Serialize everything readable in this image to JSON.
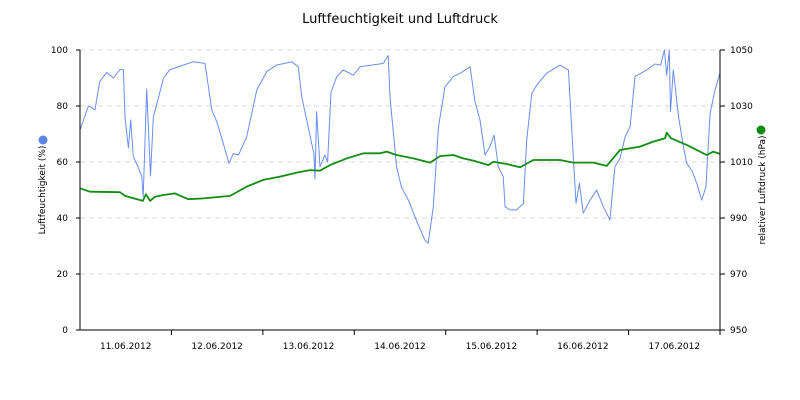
{
  "chart_data": {
    "type": "line",
    "title": "Luftfeuchtigkeit und Luftdruck",
    "xlabel": "",
    "x_range": [
      "2012-06-11 00:00",
      "2012-06-18 00:00"
    ],
    "x_tick_labels": [
      "11.06.2012",
      "12.06.2012",
      "13.06.2012",
      "14.06.2012",
      "15.06.2012",
      "16.06.2012",
      "17.06.2012"
    ],
    "grid": "horizontal dashed",
    "y_left": {
      "label": "Luftfeuchtigkeit (%)",
      "range": [
        0,
        100
      ],
      "ticks": [
        "0",
        "20",
        "40",
        "60",
        "80",
        "100"
      ],
      "legend_color": "#5b85ea"
    },
    "y_right": {
      "label": "relativer Luftdruck (hPa)",
      "range": [
        950,
        1050
      ],
      "ticks": [
        "950",
        "970",
        "990",
        "1010",
        "1030",
        "1050"
      ],
      "legend_color": "#128c12"
    },
    "series": [
      {
        "axis": "left",
        "color": "#6a8ef0",
        "points": [
          [
            "2012-06-11 00:00",
            71.4
          ],
          [
            "2012-06-11 02:12",
            80
          ],
          [
            "2012-06-11 03:30",
            79
          ],
          [
            "2012-06-11 03:54",
            78.6
          ],
          [
            "2012-06-11 05:12",
            88.7
          ],
          [
            "2012-06-11 07:00",
            92
          ],
          [
            "2012-06-11 08:45",
            90
          ],
          [
            "2012-06-11 10:30",
            93
          ],
          [
            "2012-06-11 11:24",
            93
          ],
          [
            "2012-06-11 11:48",
            76
          ],
          [
            "2012-06-11 12:42",
            65
          ],
          [
            "2012-06-11 13:18",
            75
          ],
          [
            "2012-06-11 14:00",
            62
          ],
          [
            "2012-06-11 15:18",
            58
          ],
          [
            "2012-06-11 16:12",
            55
          ],
          [
            "2012-06-11 16:36",
            47.6
          ],
          [
            "2012-06-11 17:30",
            86
          ],
          [
            "2012-06-11 18:30",
            55
          ],
          [
            "2012-06-11 19:15",
            76
          ],
          [
            "2012-06-11 20:36",
            83
          ],
          [
            "2012-06-11 21:54",
            90
          ],
          [
            "2012-06-11 23:36",
            93
          ],
          [
            "2012-06-12 03:06",
            94.6
          ],
          [
            "2012-06-12 05:45",
            95.8
          ],
          [
            "2012-06-12 08:48",
            95.2
          ],
          [
            "2012-06-12 10:36",
            78.6
          ],
          [
            "2012-06-12 11:54",
            74.4
          ],
          [
            "2012-06-12 13:36",
            66.7
          ],
          [
            "2012-06-12 15:06",
            59.5
          ],
          [
            "2012-06-12 16:15",
            63
          ],
          [
            "2012-06-12 17:36",
            62.5
          ],
          [
            "2012-06-12 19:45",
            69
          ],
          [
            "2012-06-12 22:24",
            85.7
          ],
          [
            "2012-06-13 01:00",
            92.3
          ],
          [
            "2012-06-13 03:36",
            94.6
          ],
          [
            "2012-06-13 07:36",
            95.8
          ],
          [
            "2012-06-13 09:18",
            94
          ],
          [
            "2012-06-13 10:12",
            83.3
          ],
          [
            "2012-06-13 11:30",
            75
          ],
          [
            "2012-06-13 12:48",
            66.7
          ],
          [
            "2012-06-13 13:24",
            63
          ],
          [
            "2012-06-13 13:42",
            54
          ],
          [
            "2012-06-13 14:06",
            78
          ],
          [
            "2012-06-13 15:00",
            58.3
          ],
          [
            "2012-06-13 16:18",
            62.5
          ],
          [
            "2012-06-13 17:00",
            60
          ],
          [
            "2012-06-13 17:54",
            85
          ],
          [
            "2012-06-13 19:24",
            90.5
          ],
          [
            "2012-06-13 21:06",
            92.9
          ],
          [
            "2012-06-13 23:45",
            91
          ],
          [
            "2012-06-14 01:30",
            94
          ],
          [
            "2012-06-14 07:36",
            95.2
          ],
          [
            "2012-06-14 08:54",
            98
          ],
          [
            "2012-06-14 09:24",
            82.7
          ],
          [
            "2012-06-14 11:06",
            58.3
          ],
          [
            "2012-06-14 12:24",
            51
          ],
          [
            "2012-06-14 14:12",
            46.4
          ],
          [
            "2012-06-14 16:24",
            38.7
          ],
          [
            "2012-06-14 18:36",
            32
          ],
          [
            "2012-06-14 19:24",
            31
          ],
          [
            "2012-06-14 20:45",
            44
          ],
          [
            "2012-06-14 22:06",
            72.6
          ],
          [
            "2012-06-14 23:48",
            86.9
          ],
          [
            "2012-06-15 02:00",
            90.5
          ],
          [
            "2012-06-15 04:12",
            92
          ],
          [
            "2012-06-15 06:24",
            94
          ],
          [
            "2012-06-15 07:42",
            81.5
          ],
          [
            "2012-06-15 09:00",
            75
          ],
          [
            "2012-06-15 10:18",
            62.5
          ],
          [
            "2012-06-15 11:36",
            65.5
          ],
          [
            "2012-06-15 12:42",
            69.6
          ],
          [
            "2012-06-15 13:48",
            58.3
          ],
          [
            "2012-06-15 15:06",
            54.8
          ],
          [
            "2012-06-15 15:36",
            44
          ],
          [
            "2012-06-15 16:54",
            42.9
          ],
          [
            "2012-06-15 18:36",
            42.9
          ],
          [
            "2012-06-15 20:24",
            45.2
          ],
          [
            "2012-06-15 21:15",
            67.9
          ],
          [
            "2012-06-15 22:36",
            84.5
          ],
          [
            "2012-06-15 23:54",
            87.5
          ],
          [
            "2012-06-16 02:30",
            91.7
          ],
          [
            "2012-06-16 06:00",
            94.6
          ],
          [
            "2012-06-16 08:12",
            92.9
          ],
          [
            "2012-06-16 09:30",
            61.9
          ],
          [
            "2012-06-16 10:12",
            45.2
          ],
          [
            "2012-06-16 11:06",
            52.4
          ],
          [
            "2012-06-16 12:06",
            41.7
          ],
          [
            "2012-06-16 13:54",
            46.4
          ],
          [
            "2012-06-16 15:36",
            50
          ],
          [
            "2012-06-16 17:24",
            44
          ],
          [
            "2012-06-16 19:06",
            39.3
          ],
          [
            "2012-06-16 20:24",
            58.3
          ],
          [
            "2012-06-16 21:45",
            61.3
          ],
          [
            "2012-06-16 23:06",
            69
          ],
          [
            "2012-06-17 00:24",
            72.6
          ],
          [
            "2012-06-17 01:42",
            90.5
          ],
          [
            "2012-06-17 04:45",
            92.9
          ],
          [
            "2012-06-17 06:54",
            95
          ],
          [
            "2012-06-17 08:24",
            94.6
          ],
          [
            "2012-06-17 09:24",
            100
          ],
          [
            "2012-06-17 10:00",
            91
          ],
          [
            "2012-06-17 10:42",
            100
          ],
          [
            "2012-06-17 11:00",
            78
          ],
          [
            "2012-06-17 11:45",
            92.9
          ],
          [
            "2012-06-17 13:06",
            76.2
          ],
          [
            "2012-06-17 14:24",
            65.5
          ],
          [
            "2012-06-17 15:15",
            59.5
          ],
          [
            "2012-06-17 16:36",
            57
          ],
          [
            "2012-06-17 17:54",
            52.4
          ],
          [
            "2012-06-17 19:12",
            46.4
          ],
          [
            "2012-06-17 20:18",
            51
          ],
          [
            "2012-06-17 21:24",
            77.4
          ],
          [
            "2012-06-17 22:42",
            85.7
          ],
          [
            "2012-06-18 00:00",
            91.7
          ]
        ]
      },
      {
        "axis": "right",
        "color": "#128c12",
        "points": [
          [
            "2012-06-11 00:00",
            1000.6
          ],
          [
            "2012-06-11 02:36",
            999.4
          ],
          [
            "2012-06-11 10:30",
            999.2
          ],
          [
            "2012-06-11 11:48",
            997.9
          ],
          [
            "2012-06-11 16:30",
            996.1
          ],
          [
            "2012-06-11 17:18",
            998.5
          ],
          [
            "2012-06-11 18:24",
            996.1
          ],
          [
            "2012-06-11 19:42",
            997.6
          ],
          [
            "2012-06-11 21:54",
            998.2
          ],
          [
            "2012-06-12 00:54",
            998.8
          ],
          [
            "2012-06-12 04:24",
            996.7
          ],
          [
            "2012-06-12 08:24",
            997
          ],
          [
            "2012-06-12 15:24",
            997.9
          ],
          [
            "2012-06-12 19:45",
            1001.2
          ],
          [
            "2012-06-13 00:06",
            1003.6
          ],
          [
            "2012-06-13 04:30",
            1004.8
          ],
          [
            "2012-06-13 08:54",
            1006.2
          ],
          [
            "2012-06-13 12:24",
            1007.1
          ],
          [
            "2012-06-13 15:00",
            1006.9
          ],
          [
            "2012-06-13 17:36",
            1008.9
          ],
          [
            "2012-06-13 22:00",
            1011.3
          ],
          [
            "2012-06-14 02:24",
            1013.1
          ],
          [
            "2012-06-14 06:45",
            1013.1
          ],
          [
            "2012-06-14 08:30",
            1013.7
          ],
          [
            "2012-06-14 11:06",
            1012.5
          ],
          [
            "2012-06-14 15:30",
            1011.3
          ],
          [
            "2012-06-14 19:54",
            1009.8
          ],
          [
            "2012-06-14 22:30",
            1012.1
          ],
          [
            "2012-06-15 02:00",
            1012.5
          ],
          [
            "2012-06-15 04:36",
            1011.3
          ],
          [
            "2012-06-15 07:15",
            1010.5
          ],
          [
            "2012-06-15 11:12",
            1008.9
          ],
          [
            "2012-06-15 12:30",
            1010.1
          ],
          [
            "2012-06-15 16:00",
            1009.3
          ],
          [
            "2012-06-15 19:30",
            1008.1
          ],
          [
            "2012-06-15 23:00",
            1010.7
          ],
          [
            "2012-06-16 06:00",
            1010.7
          ],
          [
            "2012-06-16 09:30",
            1009.8
          ],
          [
            "2012-06-16 14:45",
            1009.8
          ],
          [
            "2012-06-16 18:15",
            1008.6
          ],
          [
            "2012-06-16 21:45",
            1014.3
          ],
          [
            "2012-06-17 03:00",
            1015.5
          ],
          [
            "2012-06-17 06:30",
            1017.3
          ],
          [
            "2012-06-17 09:36",
            1018.5
          ],
          [
            "2012-06-17 10:00",
            1020.5
          ],
          [
            "2012-06-17 11:06",
            1018.5
          ],
          [
            "2012-06-17 15:15",
            1016.1
          ],
          [
            "2012-06-17 20:30",
            1012.5
          ],
          [
            "2012-06-17 22:15",
            1013.7
          ],
          [
            "2012-06-18 00:00",
            1012.9
          ]
        ]
      }
    ]
  }
}
